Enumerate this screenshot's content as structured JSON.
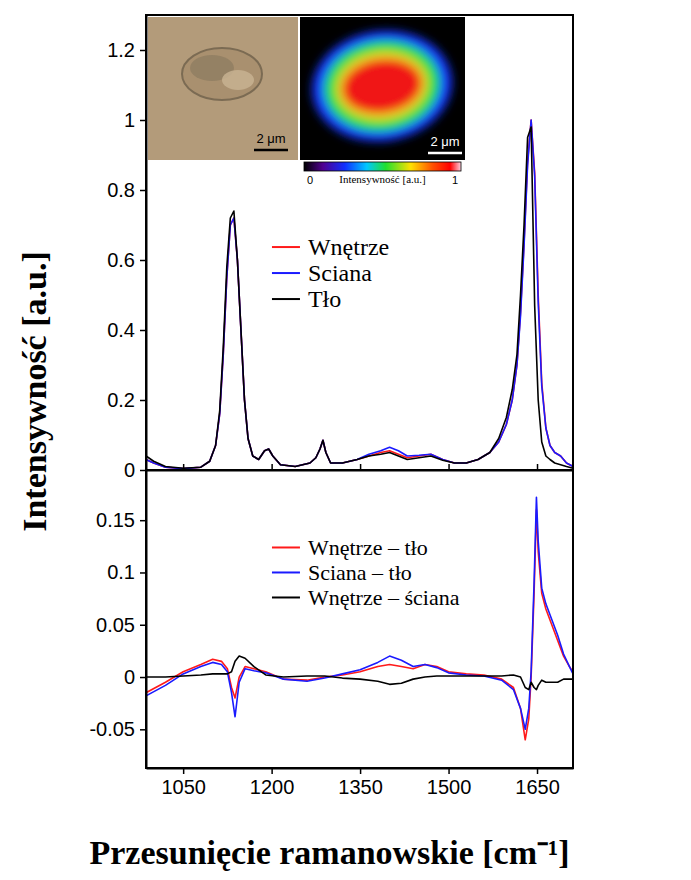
{
  "chart_data": [
    {
      "type": "line",
      "ylabel": "Intensywność [a.u.]",
      "x": [
        987,
        1000,
        1020,
        1050,
        1080,
        1095,
        1105,
        1112,
        1118,
        1124,
        1130,
        1136,
        1142,
        1148,
        1154,
        1160,
        1168,
        1178,
        1188,
        1195,
        1202,
        1215,
        1240,
        1265,
        1275,
        1282,
        1287,
        1292,
        1300,
        1320,
        1345,
        1365,
        1385,
        1400,
        1415,
        1430,
        1450,
        1470,
        1490,
        1510,
        1530,
        1550,
        1570,
        1585,
        1598,
        1608,
        1616,
        1622,
        1628,
        1634,
        1640,
        1646,
        1652,
        1658,
        1665,
        1672,
        1680,
        1690,
        1700,
        1711
      ],
      "series": [
        {
          "name": "Wnętrze",
          "color": "#ff1a1a",
          "values": [
            0.03,
            0.02,
            0.008,
            0.004,
            0.008,
            0.025,
            0.07,
            0.16,
            0.33,
            0.55,
            0.7,
            0.72,
            0.6,
            0.4,
            0.2,
            0.09,
            0.04,
            0.03,
            0.055,
            0.06,
            0.04,
            0.015,
            0.01,
            0.02,
            0.035,
            0.06,
            0.085,
            0.05,
            0.02,
            0.02,
            0.03,
            0.04,
            0.05,
            0.055,
            0.045,
            0.035,
            0.04,
            0.045,
            0.03,
            0.02,
            0.02,
            0.03,
            0.05,
            0.08,
            0.13,
            0.2,
            0.3,
            0.45,
            0.65,
            0.88,
            1.0,
            0.85,
            0.5,
            0.25,
            0.12,
            0.07,
            0.05,
            0.04,
            0.02,
            0.01
          ]
        },
        {
          "name": "Sciana",
          "color": "#1a1aff",
          "values": [
            0.03,
            0.02,
            0.008,
            0.004,
            0.008,
            0.025,
            0.07,
            0.16,
            0.33,
            0.55,
            0.7,
            0.72,
            0.6,
            0.4,
            0.2,
            0.09,
            0.04,
            0.03,
            0.055,
            0.06,
            0.04,
            0.015,
            0.01,
            0.02,
            0.035,
            0.06,
            0.085,
            0.05,
            0.02,
            0.02,
            0.03,
            0.045,
            0.055,
            0.065,
            0.055,
            0.04,
            0.042,
            0.045,
            0.03,
            0.02,
            0.02,
            0.03,
            0.05,
            0.08,
            0.13,
            0.2,
            0.3,
            0.44,
            0.64,
            0.87,
            1.0,
            0.84,
            0.48,
            0.24,
            0.12,
            0.07,
            0.05,
            0.04,
            0.02,
            0.01
          ]
        },
        {
          "name": "Tło",
          "color": "#000000",
          "values": [
            0.04,
            0.025,
            0.01,
            0.005,
            0.008,
            0.025,
            0.07,
            0.17,
            0.35,
            0.58,
            0.72,
            0.74,
            0.6,
            0.4,
            0.2,
            0.09,
            0.04,
            0.03,
            0.055,
            0.06,
            0.04,
            0.015,
            0.01,
            0.02,
            0.035,
            0.06,
            0.085,
            0.05,
            0.02,
            0.02,
            0.03,
            0.04,
            0.045,
            0.05,
            0.04,
            0.03,
            0.035,
            0.04,
            0.028,
            0.02,
            0.02,
            0.03,
            0.05,
            0.09,
            0.15,
            0.23,
            0.33,
            0.5,
            0.7,
            0.95,
            0.98,
            0.47,
            0.2,
            0.08,
            0.04,
            0.03,
            0.02,
            0.015,
            0.01,
            0.005
          ]
        }
      ],
      "xlim": [
        987,
        1711
      ],
      "xticks": [
        1050,
        1200,
        1350,
        1500,
        1650
      ],
      "ylim": [
        0,
        1.3
      ],
      "yticks": [
        0,
        0.2,
        0.4,
        0.6,
        0.8,
        1,
        1.2
      ],
      "tick_labels": "y",
      "legend": "center",
      "insets": {
        "photo_scale_bar": "2 μm",
        "map_scale_bar": "2 μm",
        "colorbar": {
          "label": "Intensywność [a.u.]",
          "range": [
            0,
            1
          ],
          "ticks": [
            0,
            1
          ]
        }
      }
    },
    {
      "type": "line",
      "xlabel": "Przesunięcie ramanowskie [cm⁻¹]",
      "x": [
        987,
        1020,
        1050,
        1080,
        1100,
        1115,
        1125,
        1132,
        1138,
        1145,
        1155,
        1170,
        1190,
        1220,
        1260,
        1290,
        1320,
        1350,
        1380,
        1400,
        1420,
        1440,
        1460,
        1480,
        1500,
        1530,
        1560,
        1590,
        1610,
        1622,
        1630,
        1636,
        1640,
        1645,
        1649,
        1652,
        1658,
        1665,
        1675,
        1685,
        1695,
        1705,
        1711
      ],
      "series": [
        {
          "name": "Wnętrze – tło",
          "color": "#ff1a1a",
          "values": [
            -0.015,
            -0.005,
            0.005,
            0.012,
            0.017,
            0.015,
            0.008,
            -0.01,
            -0.02,
            0.0,
            0.01,
            0.008,
            0.005,
            -0.002,
            -0.003,
            0.0,
            0.002,
            0.005,
            0.01,
            0.012,
            0.01,
            0.008,
            0.012,
            0.01,
            0.005,
            0.003,
            0.002,
            -0.002,
            -0.01,
            -0.03,
            -0.06,
            -0.04,
            0.0,
            0.08,
            0.16,
            0.12,
            0.08,
            0.065,
            0.05,
            0.035,
            0.02,
            0.01,
            0.005
          ]
        },
        {
          "name": "Sciana – tło",
          "color": "#1a1aff",
          "values": [
            -0.018,
            -0.008,
            0.003,
            0.01,
            0.014,
            0.012,
            0.005,
            -0.015,
            -0.038,
            -0.005,
            0.008,
            0.006,
            0.004,
            -0.002,
            -0.004,
            -0.001,
            0.003,
            0.007,
            0.014,
            0.02,
            0.016,
            0.01,
            0.012,
            0.009,
            0.004,
            0.002,
            0.001,
            -0.003,
            -0.012,
            -0.03,
            -0.05,
            -0.03,
            0.005,
            0.09,
            0.172,
            0.13,
            0.085,
            0.07,
            0.055,
            0.04,
            0.022,
            0.01,
            0.003
          ]
        },
        {
          "name": "Wnętrze – ściana",
          "color": "#000000",
          "values": [
            0,
            0,
            0.001,
            0.002,
            0.003,
            0.003,
            0.003,
            0.005,
            0.015,
            0.02,
            0.018,
            0.01,
            0.002,
            0,
            0.001,
            0.001,
            -0.001,
            -0.002,
            -0.004,
            -0.007,
            -0.006,
            -0.002,
            0,
            0.001,
            0.001,
            0.001,
            0.001,
            0.001,
            0.002,
            0,
            -0.01,
            -0.012,
            -0.005,
            -0.01,
            -0.012,
            -0.008,
            -0.003,
            -0.005,
            -0.005,
            -0.005,
            -0.002,
            -0.002,
            -0.002
          ]
        }
      ],
      "xlim": [
        987,
        1711
      ],
      "xticks": [
        1050,
        1200,
        1350,
        1500,
        1650
      ],
      "ylim": [
        -0.087,
        0.198
      ],
      "yticks": [
        -0.05,
        0,
        0.05,
        0.1,
        0.15
      ],
      "legend": "top"
    }
  ]
}
